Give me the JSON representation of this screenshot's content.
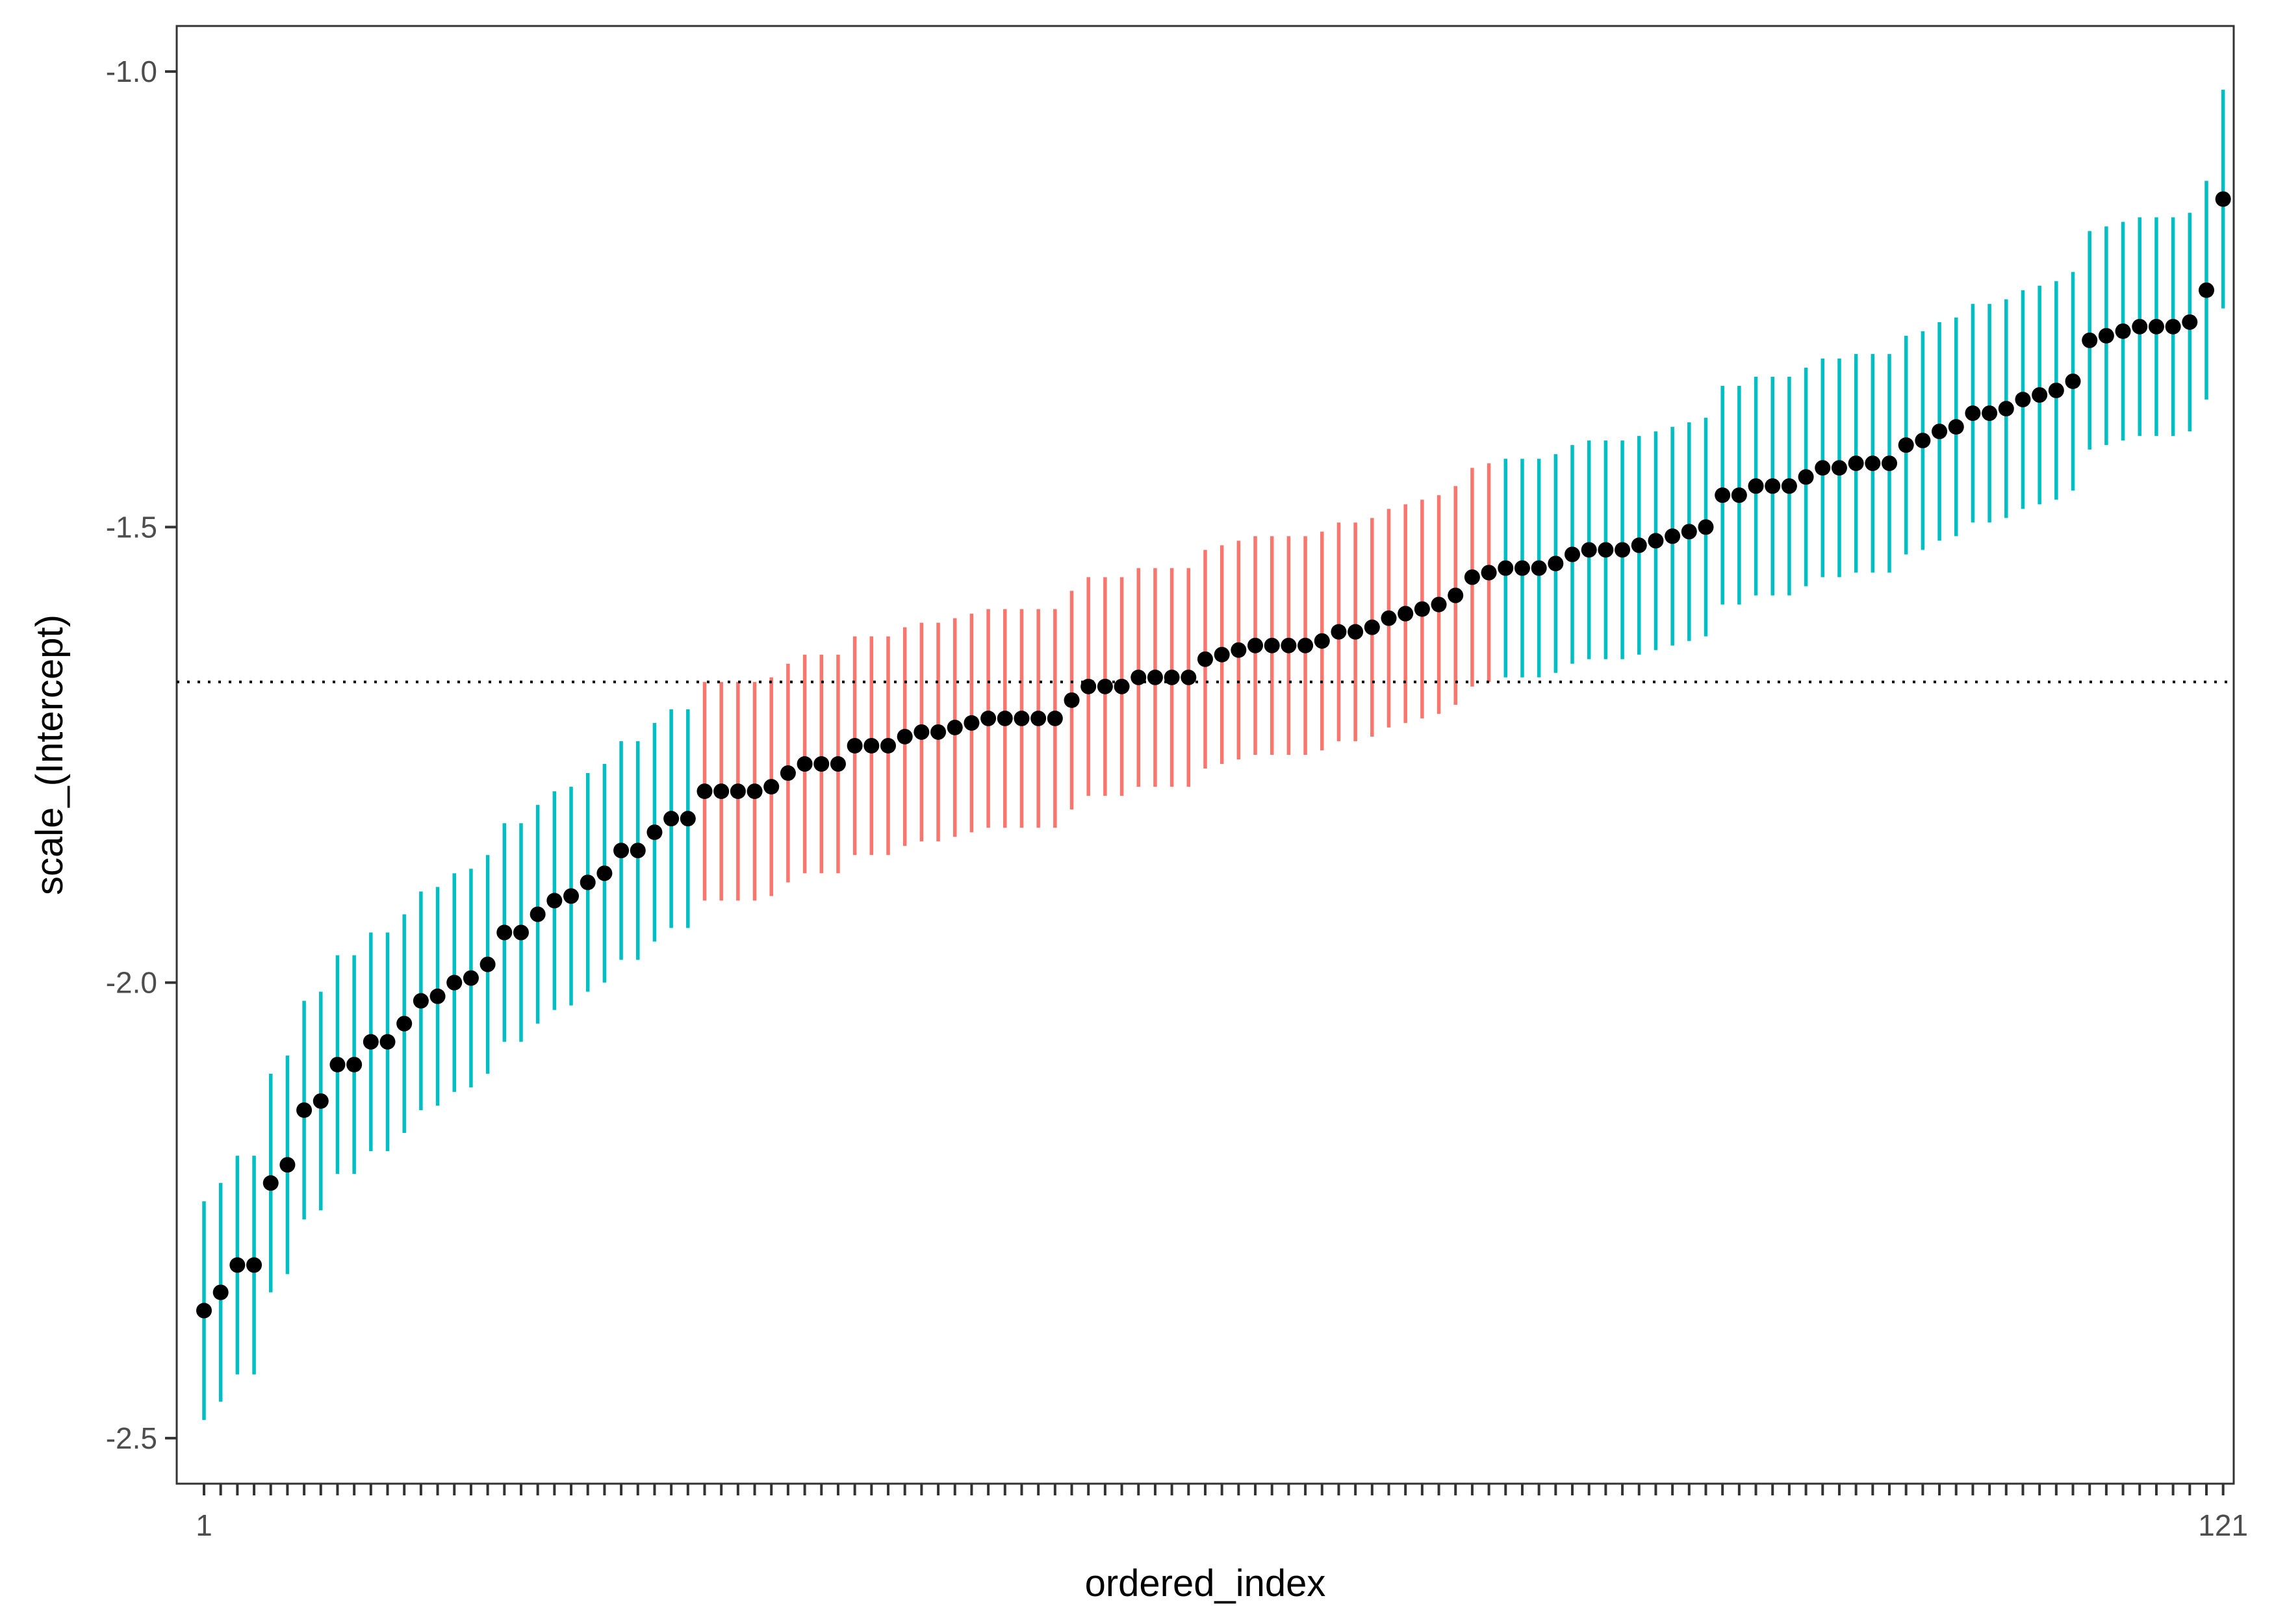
{
  "chart_data": {
    "type": "scatter",
    "subtype": "point-range caterpillar plot",
    "xlabel": "ordered_index",
    "ylabel": "scale_(Intercept)",
    "xlim": [
      1,
      121
    ],
    "ylim": [
      -2.55,
      -0.95
    ],
    "x_tick_labels": [
      "1",
      "121"
    ],
    "y_ticks": [
      -1.0,
      -1.5,
      -2.0,
      -2.5
    ],
    "y_tick_labels": [
      "-1.0",
      "-1.5",
      "-2.0",
      "-2.5"
    ],
    "reference_line": {
      "y": -1.67,
      "style": "dotted",
      "color": "#000000"
    },
    "grid": false,
    "legend": "none",
    "colors": {
      "interval_excludes_reference": "#00BFC4",
      "interval_includes_reference": "#F8766D",
      "point": "#000000",
      "frame": "#333333"
    },
    "interval_halfwidth": 0.12,
    "estimates": [
      -2.36,
      -2.34,
      -2.31,
      -2.31,
      -2.22,
      -2.2,
      -2.14,
      -2.13,
      -2.09,
      -2.09,
      -2.065,
      -2.065,
      -2.045,
      -2.02,
      -2.015,
      -2.0,
      -1.995,
      -1.98,
      -1.945,
      -1.945,
      -1.925,
      -1.91,
      -1.905,
      -1.89,
      -1.88,
      -1.855,
      -1.855,
      -1.835,
      -1.82,
      -1.82,
      -1.79,
      -1.79,
      -1.79,
      -1.79,
      -1.785,
      -1.77,
      -1.76,
      -1.76,
      -1.76,
      -1.74,
      -1.74,
      -1.74,
      -1.73,
      -1.725,
      -1.725,
      -1.72,
      -1.715,
      -1.71,
      -1.71,
      -1.71,
      -1.71,
      -1.71,
      -1.69,
      -1.675,
      -1.675,
      -1.675,
      -1.665,
      -1.665,
      -1.665,
      -1.665,
      -1.645,
      -1.64,
      -1.635,
      -1.63,
      -1.63,
      -1.63,
      -1.63,
      -1.625,
      -1.615,
      -1.615,
      -1.61,
      -1.6,
      -1.595,
      -1.59,
      -1.585,
      -1.575,
      -1.555,
      -1.55,
      -1.545,
      -1.545,
      -1.545,
      -1.54,
      -1.53,
      -1.525,
      -1.525,
      -1.525,
      -1.52,
      -1.515,
      -1.51,
      -1.505,
      -1.5,
      -1.465,
      -1.465,
      -1.455,
      -1.455,
      -1.455,
      -1.445,
      -1.435,
      -1.435,
      -1.43,
      -1.43,
      -1.43,
      -1.41,
      -1.405,
      -1.395,
      -1.39,
      -1.375,
      -1.375,
      -1.37,
      -1.36,
      -1.355,
      -1.35,
      -1.34,
      -1.295,
      -1.29,
      -1.285,
      -1.28,
      -1.28,
      -1.28,
      -1.275,
      -1.24,
      -1.14
    ]
  }
}
